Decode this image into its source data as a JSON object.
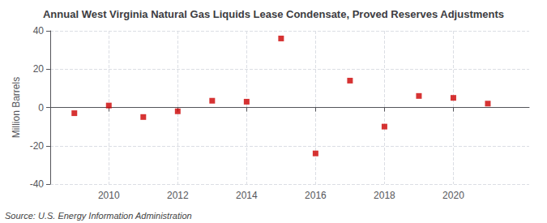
{
  "chart_data": {
    "type": "scatter",
    "title": "Annual West Virginia Natural Gas Liquids Lease Condensate, Proved Reserves Adjustments",
    "ylabel": "Million Barrels",
    "annotations": [
      "Source: U.S. Energy Information Administration"
    ],
    "x": [
      2009,
      2010,
      2011,
      2012,
      2013,
      2014,
      2015,
      2016,
      2017,
      2018,
      2019,
      2020,
      2021
    ],
    "values": [
      -3.0,
      1.0,
      -5.0,
      -2.0,
      3.5,
      3.0,
      36.0,
      -24.0,
      14.0,
      -10.0,
      6.0,
      5.0,
      2.0
    ],
    "color": "#CC0000",
    "marker": "square",
    "xlim": [
      2008.3,
      2022.2
    ],
    "xticks": [
      2010,
      2012,
      2014,
      2016,
      2018,
      2020
    ],
    "ylim": [
      -40,
      40
    ],
    "yticks": [
      -40,
      -20,
      0,
      20,
      40
    ],
    "grid": true
  }
}
